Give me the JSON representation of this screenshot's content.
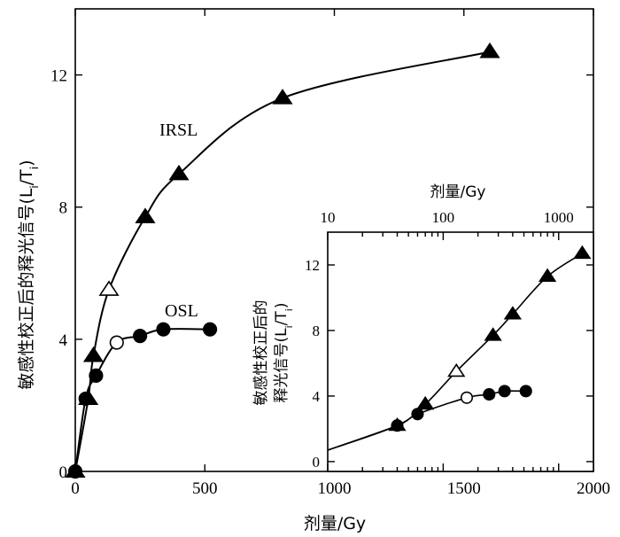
{
  "chart_data": [
    {
      "type": "scatter",
      "xlabel": "剂量/Gy",
      "ylabel": "敏感性校正后的释光信号(L_i/T_i)",
      "ylabel_main": "敏感性校正后的释光信号(L",
      "ylabel_sub1": "i",
      "ylabel_mid": "/T",
      "ylabel_sub2": "i",
      "ylabel_end": ")",
      "xlim": [
        0,
        2000
      ],
      "ylim": [
        0,
        14
      ],
      "x_ticks": [
        0,
        500,
        1000,
        1500,
        2000
      ],
      "y_ticks": [
        0,
        4,
        8,
        12
      ],
      "x_tick_labels": [
        "0",
        "500",
        "1000",
        "1500",
        "2000"
      ],
      "y_tick_labels": [
        "0",
        "4",
        "8",
        "12"
      ],
      "series": [
        {
          "name": "IRSL",
          "marker": "triangle",
          "points": [
            {
              "x": 0,
              "y": 0,
              "filled": true
            },
            {
              "x": 50,
              "y": 2.2,
              "filled": true
            },
            {
              "x": 70,
              "y": 3.5,
              "filled": true
            },
            {
              "x": 130,
              "y": 5.5,
              "filled": false
            },
            {
              "x": 270,
              "y": 7.7,
              "filled": true
            },
            {
              "x": 400,
              "y": 9.0,
              "filled": true
            },
            {
              "x": 800,
              "y": 11.3,
              "filled": true
            },
            {
              "x": 1600,
              "y": 12.7,
              "filled": true
            }
          ]
        },
        {
          "name": "OSL",
          "marker": "circle",
          "points": [
            {
              "x": 0,
              "y": 0,
              "filled": true
            },
            {
              "x": 40,
              "y": 2.2,
              "filled": true
            },
            {
              "x": 80,
              "y": 2.9,
              "filled": true
            },
            {
              "x": 160,
              "y": 3.9,
              "filled": false
            },
            {
              "x": 250,
              "y": 4.1,
              "filled": true
            },
            {
              "x": 340,
              "y": 4.3,
              "filled": true
            },
            {
              "x": 520,
              "y": 4.3,
              "filled": true
            }
          ]
        }
      ]
    },
    {
      "type": "scatter",
      "xscale": "log",
      "xlabel": "剂量/Gy",
      "ylabel_line1": "敏感性校正后的",
      "ylabel_line2_main": "释光信号(L",
      "ylabel_line2_sub1": "i",
      "ylabel_line2_mid": "/T",
      "ylabel_line2_sub2": "i",
      "ylabel_line2_end": ")",
      "xlim": [
        10,
        2000
      ],
      "ylim": [
        -0.6,
        14
      ],
      "x_ticks": [
        10,
        100,
        1000
      ],
      "y_ticks": [
        0,
        4,
        8,
        12
      ],
      "x_tick_labels": [
        "10",
        "100",
        "1000"
      ],
      "y_tick_labels": [
        "0",
        "4",
        "8",
        "12"
      ],
      "series": [
        {
          "name": "IRSL",
          "marker": "triangle",
          "points": [
            {
              "x": 40,
              "y": 2.2,
              "filled": true
            },
            {
              "x": 70,
              "y": 3.5,
              "filled": true
            },
            {
              "x": 130,
              "y": 5.5,
              "filled": false
            },
            {
              "x": 270,
              "y": 7.7,
              "filled": true
            },
            {
              "x": 400,
              "y": 9.0,
              "filled": true
            },
            {
              "x": 800,
              "y": 11.3,
              "filled": true
            },
            {
              "x": 1600,
              "y": 12.7,
              "filled": true
            }
          ]
        },
        {
          "name": "OSL",
          "marker": "circle",
          "points": [
            {
              "x": 40,
              "y": 2.2,
              "filled": true
            },
            {
              "x": 60,
              "y": 2.9,
              "filled": true
            },
            {
              "x": 160,
              "y": 3.9,
              "filled": false
            },
            {
              "x": 250,
              "y": 4.1,
              "filled": true
            },
            {
              "x": 340,
              "y": 4.3,
              "filled": true
            },
            {
              "x": 520,
              "y": 4.3,
              "filled": true
            }
          ]
        }
      ]
    }
  ]
}
